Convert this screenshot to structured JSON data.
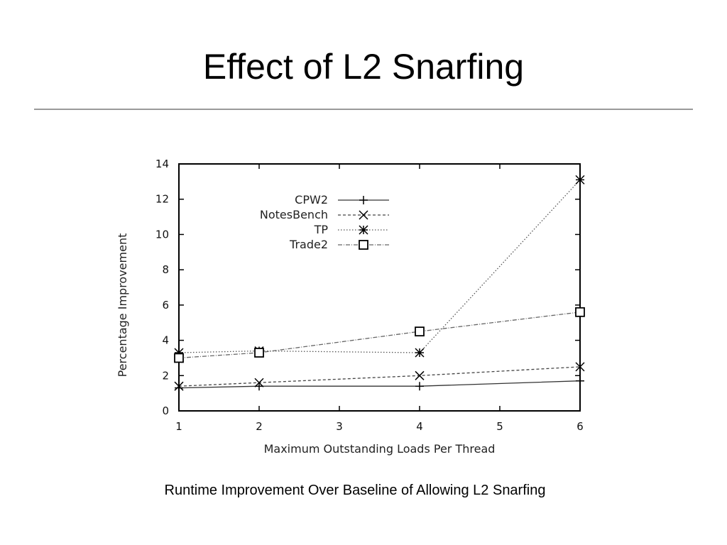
{
  "slide": {
    "title": "Effect of L2 Snarfing",
    "caption": "Runtime Improvement Over Baseline of Allowing L2 Snarfing"
  },
  "chart_data": {
    "type": "line",
    "title": "",
    "xlabel": "Maximum Outstanding Loads Per Thread",
    "ylabel": "Percentage Improvement",
    "xlim": [
      1,
      6
    ],
    "ylim": [
      0,
      14
    ],
    "xticks": [
      1,
      2,
      3,
      4,
      5,
      6
    ],
    "yticks": [
      0,
      2,
      4,
      6,
      8,
      10,
      12,
      14
    ],
    "grid": false,
    "legend_position": "top-center",
    "series": [
      {
        "name": "CPW2",
        "marker": "plus",
        "dash": "solid",
        "x": [
          1,
          2,
          4,
          6
        ],
        "y": [
          1.3,
          1.4,
          1.4,
          1.7
        ]
      },
      {
        "name": "NotesBench",
        "marker": "x",
        "dash": "dashed",
        "x": [
          1,
          2,
          4,
          6
        ],
        "y": [
          1.4,
          1.6,
          2.0,
          2.5
        ]
      },
      {
        "name": "TP",
        "marker": "star",
        "dash": "dotted",
        "x": [
          1,
          2,
          4,
          6
        ],
        "y": [
          3.3,
          3.4,
          3.3,
          13.1
        ]
      },
      {
        "name": "Trade2",
        "marker": "square",
        "dash": "dashdot",
        "x": [
          1,
          2,
          4,
          6
        ],
        "y": [
          3.0,
          3.3,
          4.5,
          5.6
        ]
      }
    ]
  }
}
